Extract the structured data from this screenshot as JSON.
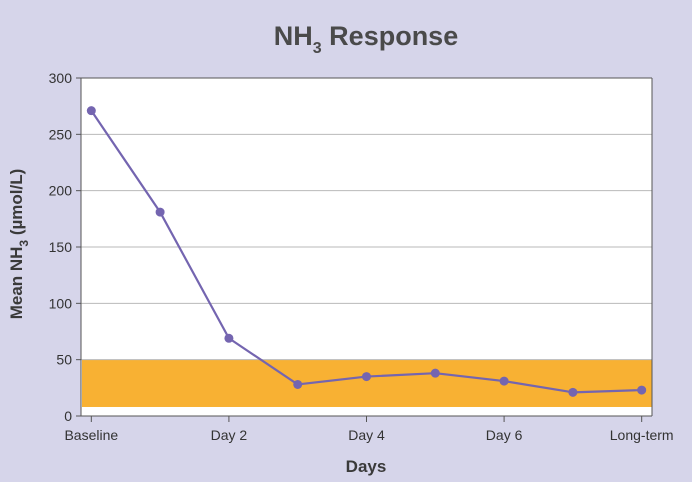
{
  "chart_data": {
    "type": "line",
    "title": {
      "main": "NH",
      "subscript": "3",
      "rest": " Response"
    },
    "xlabel": "Days",
    "ylabel": {
      "pre": "Mean NH",
      "subscript": "3",
      "post": "  (µmol/L)"
    },
    "ylim": [
      0,
      300
    ],
    "yticks": [
      0,
      50,
      100,
      150,
      200,
      250,
      300
    ],
    "x_positions": [
      0,
      1,
      2,
      3,
      4,
      5,
      6,
      7,
      8
    ],
    "xlim": [
      -0.15,
      8.15
    ],
    "xtick_labels": [
      {
        "x": 0,
        "label": "Baseline"
      },
      {
        "x": 2,
        "label": "Day 2"
      },
      {
        "x": 4,
        "label": "Day 4"
      },
      {
        "x": 6,
        "label": "Day 6"
      },
      {
        "x": 8,
        "label": "Long-term"
      }
    ],
    "series": [
      {
        "values": [
          271,
          181,
          69,
          28,
          35,
          38,
          31,
          21,
          23
        ]
      }
    ],
    "reference_band": {
      "from": 8,
      "to": 50
    },
    "grid": true,
    "colors": {
      "line": "#7465b0",
      "marker": "#7465b0",
      "band": "#f8b133",
      "grid": "#b9b9b9",
      "plot_bg": "#ffffff",
      "page_bg": "#d6d5ea"
    }
  }
}
